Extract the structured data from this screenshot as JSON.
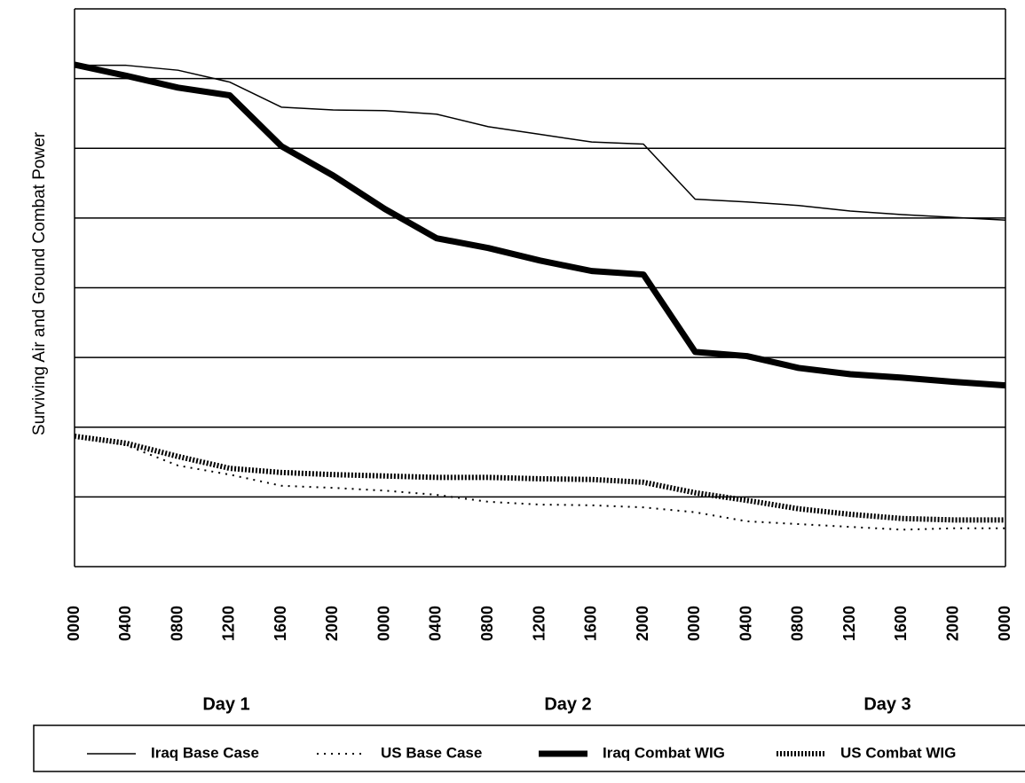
{
  "chart_data": {
    "type": "line",
    "y_label": "Surviving Air and Ground Combat Power",
    "categories": [
      "0000",
      "0400",
      "0800",
      "1200",
      "1600",
      "2000",
      "0000",
      "0400",
      "0800",
      "1200",
      "1600",
      "2000",
      "0000",
      "0400",
      "0800",
      "1200",
      "1600",
      "2000",
      "0000"
    ],
    "annotations": [
      "Day 1",
      "Day 2",
      "Day 3"
    ],
    "ylim": [
      0,
      8
    ],
    "yticks": [
      0,
      1,
      2,
      3,
      4,
      5,
      6,
      7,
      8
    ],
    "grid": true,
    "legend": "bottom",
    "series": [
      {
        "name": "Iraq Base Case",
        "color": "#000000",
        "values": [
          7.19,
          7.19,
          7.12,
          6.95,
          6.59,
          6.55,
          6.54,
          6.49,
          6.31,
          6.2,
          6.09,
          6.06,
          5.27,
          5.23,
          5.18,
          5.1,
          5.05,
          5.01,
          4.97
        ]
      },
      {
        "name": "US Base Case",
        "color": "#000000",
        "values": [
          1.87,
          1.74,
          1.45,
          1.32,
          1.16,
          1.13,
          1.09,
          1.03,
          0.93,
          0.89,
          0.88,
          0.85,
          0.78,
          0.65,
          0.61,
          0.57,
          0.53,
          0.55,
          0.55
        ]
      },
      {
        "name": "Iraq Combat WIG",
        "color": "#000000",
        "values": [
          7.2,
          7.04,
          6.87,
          6.76,
          6.03,
          5.61,
          5.13,
          4.71,
          4.57,
          4.39,
          4.24,
          4.19,
          3.08,
          3.02,
          2.85,
          2.76,
          2.71,
          2.65,
          2.6
        ]
      },
      {
        "name": "US Combat WIG",
        "color": "#000000",
        "values": [
          1.87,
          1.77,
          1.58,
          1.41,
          1.35,
          1.32,
          1.3,
          1.28,
          1.28,
          1.26,
          1.25,
          1.21,
          1.06,
          0.95,
          0.83,
          0.75,
          0.69,
          0.67,
          0.67
        ]
      }
    ]
  }
}
